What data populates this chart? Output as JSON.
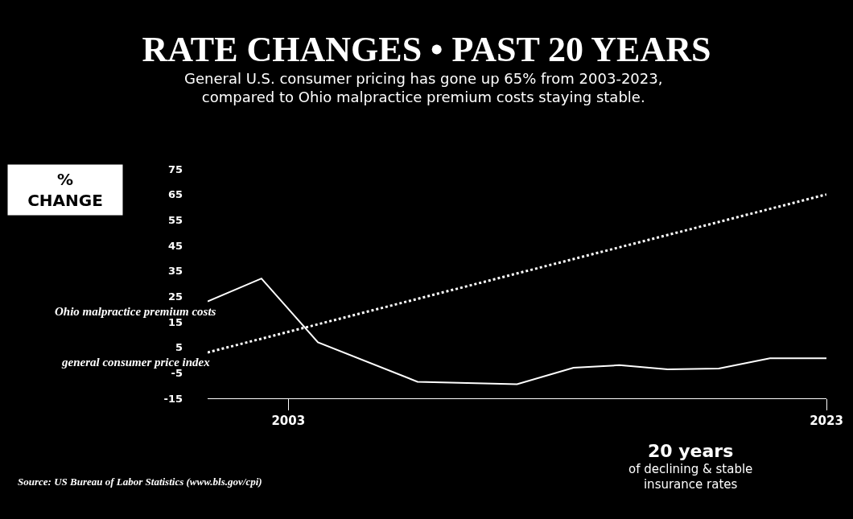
{
  "chart_data": {
    "type": "line",
    "title": "RATE CHANGES • PAST 20 YEARS",
    "subtitle": "General U.S. consumer pricing has gone up 65% from 2003-2023,\ncompared to Ohio malpractice premium costs staying stable.",
    "ylabel": "%\nCHANGE",
    "x": [
      2000,
      2002,
      2004.1,
      2007.8,
      2011.5,
      2013.6,
      2015.3,
      2017.1,
      2019,
      2020.9,
      2023
    ],
    "series": [
      {
        "name": "Ohio malpractice premium costs",
        "color": "#ffffff",
        "line_style": "solid",
        "values": [
          23,
          32,
          7,
          -8.5,
          -9.5,
          -3,
          -2,
          -3.6,
          -3.3,
          0.7,
          0.7
        ]
      },
      {
        "name": "general consumer price index",
        "color": "#ffffff",
        "line_style": "dotted",
        "x": [
          2000,
          2023
        ],
        "values": [
          3,
          65
        ]
      }
    ],
    "xlim": [
      2000,
      2023
    ],
    "xticks": [
      2003,
      2023
    ],
    "ylim": [
      -15,
      75
    ],
    "yticks": [
      -15,
      -5,
      5,
      15,
      25,
      35,
      45,
      55,
      65,
      75
    ],
    "grid": false,
    "legend": false,
    "marker": "none",
    "annotations": [
      "Source: US Bureau of Labor Statistics (www.bls.gov/cpi)",
      "20 years\nof declining & stable\ninsurance rates"
    ]
  }
}
